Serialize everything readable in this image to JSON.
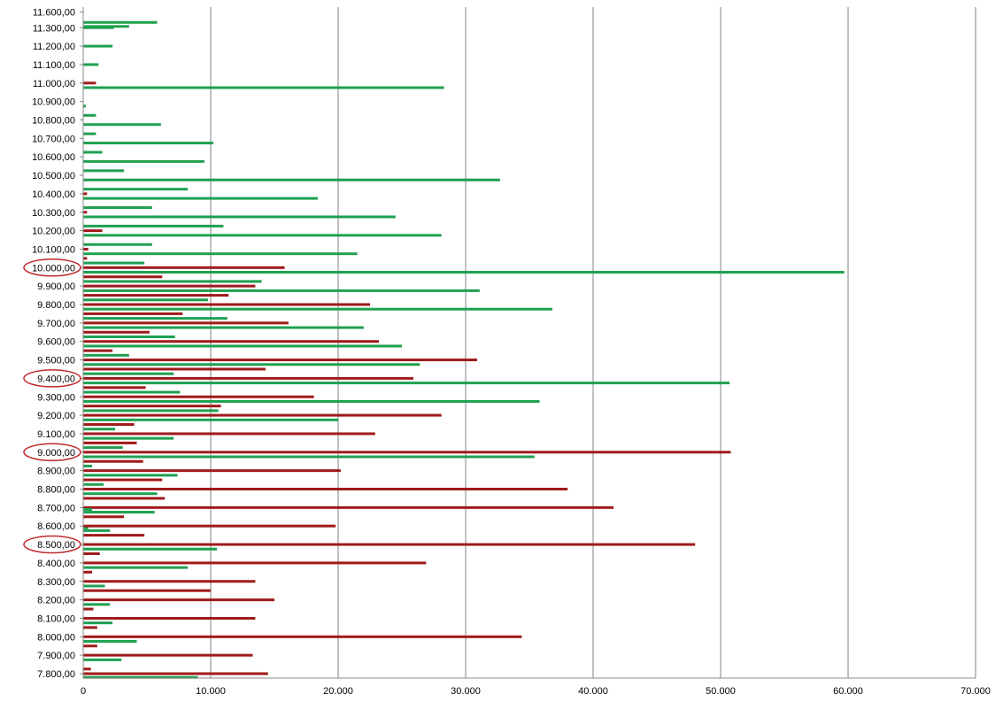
{
  "chart_data": {
    "type": "bar",
    "orientation": "horizontal",
    "grid": "vertical-major",
    "legend": "none",
    "xlim": [
      0,
      70000
    ],
    "x_ticks": [
      "0",
      "10.000",
      "20.000",
      "30.000",
      "40.000",
      "50.000",
      "60.000",
      "70.000"
    ],
    "y_ticks": [
      "7.800,00",
      "7.900,00",
      "8.000,00",
      "8.100,00",
      "8.200,00",
      "8.300,00",
      "8.400,00",
      "8.500,00",
      "8.600,00",
      "8.700,00",
      "8.800,00",
      "8.900,00",
      "9.000,00",
      "9.100,00",
      "9.200,00",
      "9.300,00",
      "9.400,00",
      "9.500,00",
      "9.600,00",
      "9.700,00",
      "9.800,00",
      "9.900,00",
      "10.000,00",
      "10.100,00",
      "10.200,00",
      "10.300,00",
      "10.400,00",
      "10.500,00",
      "10.600,00",
      "10.700,00",
      "10.800,00",
      "10.900,00",
      "11.000,00",
      "11.100,00",
      "11.200,00",
      "11.300,00",
      "11.600,00"
    ],
    "highlighted_ticks": [
      "8.500,00",
      "9.000,00",
      "9.400,00",
      "10.000,00"
    ],
    "colors": {
      "red": "#a01a1a",
      "green": "#1fa050",
      "grid": "#808080",
      "highlight": "#c0282d"
    },
    "bars": [
      {
        "strike": 7800,
        "red": 14500,
        "green": 0
      },
      {
        "strike": 7780,
        "red": 0,
        "green": 9000
      },
      {
        "strike": 7825,
        "red": 600,
        "green": 0
      },
      {
        "strike": 7875,
        "red": 0,
        "green": 3000
      },
      {
        "strike": 7900,
        "red": 13300,
        "green": 0
      },
      {
        "strike": 7950,
        "red": 1100,
        "green": 0
      },
      {
        "strike": 7975,
        "red": 0,
        "green": 4200
      },
      {
        "strike": 8000,
        "red": 34400,
        "green": 0
      },
      {
        "strike": 8050,
        "red": 1100,
        "green": 0
      },
      {
        "strike": 8075,
        "red": 0,
        "green": 2300
      },
      {
        "strike": 8100,
        "red": 13500,
        "green": 0
      },
      {
        "strike": 8150,
        "red": 800,
        "green": 0
      },
      {
        "strike": 8175,
        "red": 0,
        "green": 2100
      },
      {
        "strike": 8200,
        "red": 15000,
        "green": 0
      },
      {
        "strike": 8250,
        "red": 10000,
        "green": 0
      },
      {
        "strike": 8275,
        "red": 0,
        "green": 1700
      },
      {
        "strike": 8300,
        "red": 13500,
        "green": 0
      },
      {
        "strike": 8350,
        "red": 700,
        "green": 0
      },
      {
        "strike": 8375,
        "red": 0,
        "green": 8200
      },
      {
        "strike": 8400,
        "red": 26900,
        "green": 0
      },
      {
        "strike": 8450,
        "red": 1300,
        "green": 0
      },
      {
        "strike": 8475,
        "red": 0,
        "green": 10500
      },
      {
        "strike": 8500,
        "red": 48000,
        "green": 0
      },
      {
        "strike": 8550,
        "red": 4800,
        "green": 0
      },
      {
        "strike": 8575,
        "red": 0,
        "green": 2100
      },
      {
        "strike": 8590,
        "red": 0,
        "green": 400
      },
      {
        "strike": 8600,
        "red": 19800,
        "green": 0
      },
      {
        "strike": 8650,
        "red": 3200,
        "green": 0
      },
      {
        "strike": 8675,
        "red": 0,
        "green": 5600
      },
      {
        "strike": 8700,
        "red": 41600,
        "green": 0
      },
      {
        "strike": 8690,
        "red": 0,
        "green": 700
      },
      {
        "strike": 8750,
        "red": 6400,
        "green": 0
      },
      {
        "strike": 8775,
        "red": 0,
        "green": 5800
      },
      {
        "strike": 8800,
        "red": 38000,
        "green": 0
      },
      {
        "strike": 8825,
        "red": 0,
        "green": 1600
      },
      {
        "strike": 8850,
        "red": 6200,
        "green": 0
      },
      {
        "strike": 8875,
        "red": 0,
        "green": 7400
      },
      {
        "strike": 8900,
        "red": 20200,
        "green": 0
      },
      {
        "strike": 8925,
        "red": 0,
        "green": 700
      },
      {
        "strike": 8950,
        "red": 4700,
        "green": 0
      },
      {
        "strike": 8975,
        "red": 0,
        "green": 35400
      },
      {
        "strike": 9000,
        "red": 50800,
        "green": 0
      },
      {
        "strike": 9025,
        "red": 0,
        "green": 3100
      },
      {
        "strike": 9050,
        "red": 4200,
        "green": 0
      },
      {
        "strike": 9075,
        "red": 0,
        "green": 7100
      },
      {
        "strike": 9100,
        "red": 22900,
        "green": 0
      },
      {
        "strike": 9125,
        "red": 0,
        "green": 2500
      },
      {
        "strike": 9150,
        "red": 4000,
        "green": 0
      },
      {
        "strike": 9175,
        "red": 0,
        "green": 20000
      },
      {
        "strike": 9200,
        "red": 28100,
        "green": 0
      },
      {
        "strike": 9225,
        "red": 0,
        "green": 10600
      },
      {
        "strike": 9250,
        "red": 10800,
        "green": 0
      },
      {
        "strike": 9275,
        "red": 0,
        "green": 35800
      },
      {
        "strike": 9300,
        "red": 18100,
        "green": 0
      },
      {
        "strike": 9325,
        "red": 0,
        "green": 7600
      },
      {
        "strike": 9350,
        "red": 4900,
        "green": 0
      },
      {
        "strike": 9375,
        "red": 0,
        "green": 50700
      },
      {
        "strike": 9400,
        "red": 25900,
        "green": 0
      },
      {
        "strike": 9425,
        "red": 0,
        "green": 7100
      },
      {
        "strike": 9450,
        "red": 14300,
        "green": 0
      },
      {
        "strike": 9475,
        "red": 0,
        "green": 26400
      },
      {
        "strike": 9500,
        "red": 30900,
        "green": 0
      },
      {
        "strike": 9525,
        "red": 0,
        "green": 3600
      },
      {
        "strike": 9550,
        "red": 2300,
        "green": 0
      },
      {
        "strike": 9575,
        "red": 0,
        "green": 25000
      },
      {
        "strike": 9600,
        "red": 23200,
        "green": 0
      },
      {
        "strike": 9625,
        "red": 0,
        "green": 7200
      },
      {
        "strike": 9650,
        "red": 5200,
        "green": 0
      },
      {
        "strike": 9675,
        "red": 0,
        "green": 22000
      },
      {
        "strike": 9700,
        "red": 16100,
        "green": 0
      },
      {
        "strike": 9725,
        "red": 0,
        "green": 11300
      },
      {
        "strike": 9750,
        "red": 7800,
        "green": 0
      },
      {
        "strike": 9775,
        "red": 0,
        "green": 36800
      },
      {
        "strike": 9800,
        "red": 22500,
        "green": 0
      },
      {
        "strike": 9825,
        "red": 0,
        "green": 9800
      },
      {
        "strike": 9850,
        "red": 11400,
        "green": 0
      },
      {
        "strike": 9875,
        "red": 0,
        "green": 31100
      },
      {
        "strike": 9900,
        "red": 13500,
        "green": 0
      },
      {
        "strike": 9925,
        "red": 0,
        "green": 14000
      },
      {
        "strike": 9950,
        "red": 6200,
        "green": 0
      },
      {
        "strike": 9975,
        "red": 0,
        "green": 59700
      },
      {
        "strike": 10000,
        "red": 15800,
        "green": 0
      },
      {
        "strike": 10025,
        "red": 0,
        "green": 4800
      },
      {
        "strike": 10050,
        "red": 300,
        "green": 0
      },
      {
        "strike": 10075,
        "red": 0,
        "green": 21500
      },
      {
        "strike": 10100,
        "red": 400,
        "green": 0
      },
      {
        "strike": 10125,
        "red": 0,
        "green": 5400
      },
      {
        "strike": 10175,
        "red": 0,
        "green": 28100
      },
      {
        "strike": 10200,
        "red": 1500,
        "green": 0
      },
      {
        "strike": 10225,
        "red": 0,
        "green": 11000
      },
      {
        "strike": 10275,
        "red": 0,
        "green": 24500
      },
      {
        "strike": 10300,
        "red": 300,
        "green": 0
      },
      {
        "strike": 10325,
        "red": 0,
        "green": 5400
      },
      {
        "strike": 10375,
        "red": 0,
        "green": 18400
      },
      {
        "strike": 10400,
        "red": 300,
        "green": 0
      },
      {
        "strike": 10425,
        "red": 0,
        "green": 8200
      },
      {
        "strike": 10475,
        "red": 0,
        "green": 32700
      },
      {
        "strike": 10525,
        "red": 0,
        "green": 3200
      },
      {
        "strike": 10575,
        "red": 0,
        "green": 9500
      },
      {
        "strike": 10625,
        "red": 0,
        "green": 1500
      },
      {
        "strike": 10675,
        "red": 0,
        "green": 10200
      },
      {
        "strike": 10725,
        "red": 0,
        "green": 1000
      },
      {
        "strike": 10775,
        "red": 0,
        "green": 6100
      },
      {
        "strike": 10825,
        "red": 0,
        "green": 1000
      },
      {
        "strike": 10875,
        "red": 0,
        "green": 200
      },
      {
        "strike": 10975,
        "red": 0,
        "green": 28300
      },
      {
        "strike": 11000,
        "red": 1000,
        "green": 0
      },
      {
        "strike": 11100,
        "red": 0,
        "green": 1200
      },
      {
        "strike": 11200,
        "red": 0,
        "green": 2300
      },
      {
        "strike": 11300,
        "red": 0,
        "green": 2400
      },
      {
        "strike": 11350,
        "red": 0,
        "green": 3600
      },
      {
        "strike": 11420,
        "red": 0,
        "green": 5800
      }
    ]
  }
}
